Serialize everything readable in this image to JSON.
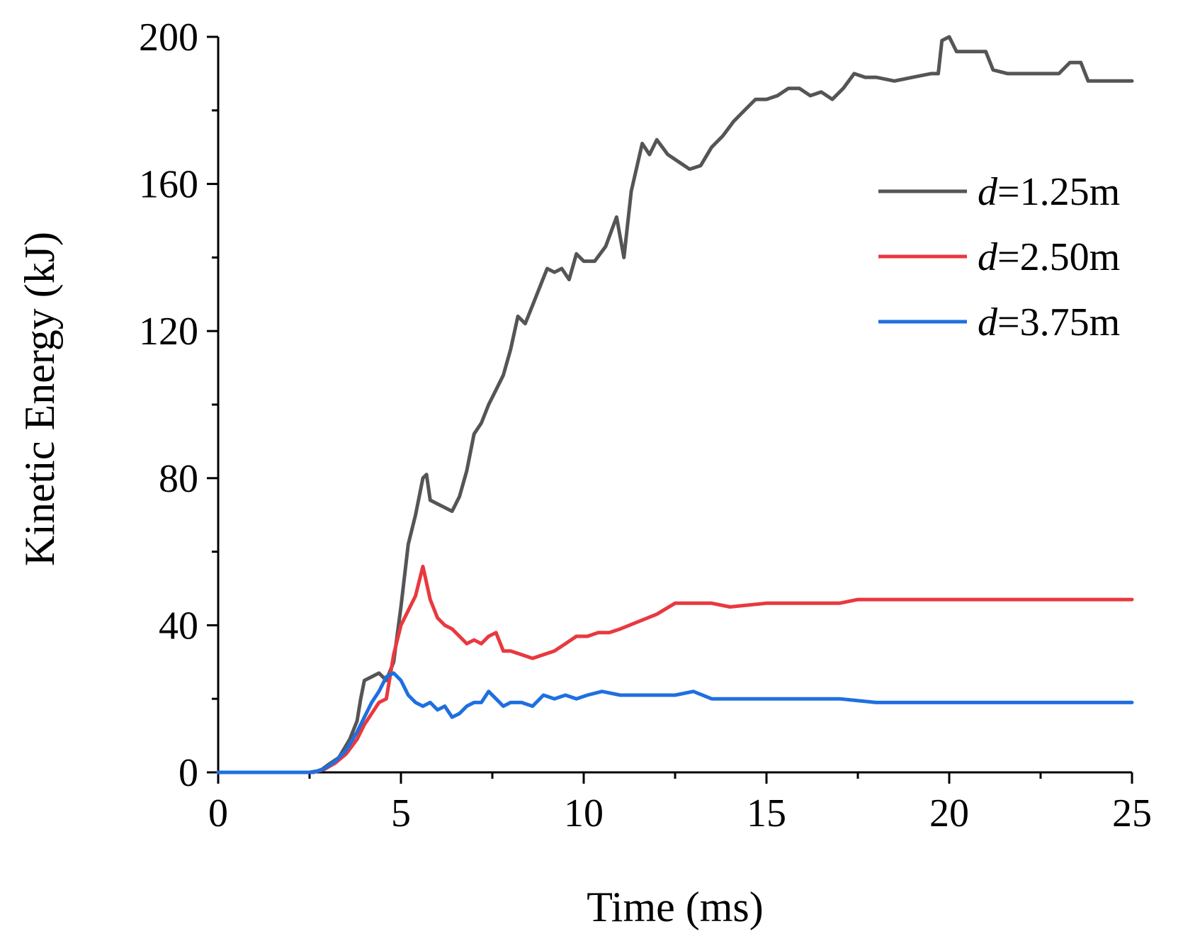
{
  "chart_data": {
    "type": "line",
    "title": "",
    "xlabel": "Time (ms)",
    "ylabel": "Kinetic Energy (kJ)",
    "xlim": [
      0,
      25
    ],
    "ylim": [
      0,
      200
    ],
    "xticks": [
      0,
      5,
      10,
      15,
      20,
      25
    ],
    "yticks": [
      0,
      40,
      80,
      120,
      160,
      200
    ],
    "x_minor_step": 2.5,
    "y_minor_step": 20,
    "grid": false,
    "legend_position": "top-right",
    "series": [
      {
        "name": "d=1.25m",
        "var": "d",
        "label_rest": "=1.25m",
        "color": "#555555",
        "points": [
          [
            0,
            0
          ],
          [
            2.5,
            0
          ],
          [
            2.8,
            0.5
          ],
          [
            3.0,
            2
          ],
          [
            3.3,
            4
          ],
          [
            3.6,
            9
          ],
          [
            3.8,
            14
          ],
          [
            3.9,
            20
          ],
          [
            4.0,
            25
          ],
          [
            4.2,
            26
          ],
          [
            4.4,
            27
          ],
          [
            4.6,
            25
          ],
          [
            4.8,
            30
          ],
          [
            5.0,
            45
          ],
          [
            5.2,
            62
          ],
          [
            5.4,
            70
          ],
          [
            5.6,
            80
          ],
          [
            5.7,
            81
          ],
          [
            5.8,
            74
          ],
          [
            6.0,
            73
          ],
          [
            6.2,
            72
          ],
          [
            6.4,
            71
          ],
          [
            6.6,
            75
          ],
          [
            6.8,
            82
          ],
          [
            7.0,
            92
          ],
          [
            7.2,
            95
          ],
          [
            7.4,
            100
          ],
          [
            7.6,
            104
          ],
          [
            7.8,
            108
          ],
          [
            8.0,
            115
          ],
          [
            8.2,
            124
          ],
          [
            8.4,
            122
          ],
          [
            8.6,
            127
          ],
          [
            8.8,
            132
          ],
          [
            9.0,
            137
          ],
          [
            9.2,
            136
          ],
          [
            9.4,
            137
          ],
          [
            9.6,
            134
          ],
          [
            9.8,
            141
          ],
          [
            10.0,
            139
          ],
          [
            10.3,
            139
          ],
          [
            10.6,
            143
          ],
          [
            10.9,
            151
          ],
          [
            11.1,
            140
          ],
          [
            11.3,
            158
          ],
          [
            11.6,
            171
          ],
          [
            11.8,
            168
          ],
          [
            12.0,
            172
          ],
          [
            12.3,
            168
          ],
          [
            12.6,
            166
          ],
          [
            12.9,
            164
          ],
          [
            13.2,
            165
          ],
          [
            13.5,
            170
          ],
          [
            13.8,
            173
          ],
          [
            14.1,
            177
          ],
          [
            14.4,
            180
          ],
          [
            14.7,
            183
          ],
          [
            15.0,
            183
          ],
          [
            15.3,
            184
          ],
          [
            15.6,
            186
          ],
          [
            15.9,
            186
          ],
          [
            16.2,
            184
          ],
          [
            16.5,
            185
          ],
          [
            16.8,
            183
          ],
          [
            17.1,
            186
          ],
          [
            17.4,
            190
          ],
          [
            17.7,
            189
          ],
          [
            18.0,
            189
          ],
          [
            18.5,
            188
          ],
          [
            19.0,
            189
          ],
          [
            19.5,
            190
          ],
          [
            19.7,
            190
          ],
          [
            19.8,
            199
          ],
          [
            20.0,
            200
          ],
          [
            20.2,
            196
          ],
          [
            20.6,
            196
          ],
          [
            21.0,
            196
          ],
          [
            21.2,
            191
          ],
          [
            21.6,
            190
          ],
          [
            22.0,
            190
          ],
          [
            22.5,
            190
          ],
          [
            23.0,
            190
          ],
          [
            23.3,
            193
          ],
          [
            23.6,
            193
          ],
          [
            23.8,
            188
          ],
          [
            24.3,
            188
          ],
          [
            25,
            188
          ]
        ]
      },
      {
        "name": "d=2.50m",
        "var": "d",
        "label_rest": "=2.50m",
        "color": "#e8393f",
        "points": [
          [
            0,
            0
          ],
          [
            2.6,
            0
          ],
          [
            2.9,
            0.8
          ],
          [
            3.2,
            2.5
          ],
          [
            3.5,
            5
          ],
          [
            3.8,
            9
          ],
          [
            4.0,
            13
          ],
          [
            4.2,
            16
          ],
          [
            4.4,
            19
          ],
          [
            4.6,
            20
          ],
          [
            4.8,
            32
          ],
          [
            5.0,
            40
          ],
          [
            5.2,
            44
          ],
          [
            5.4,
            48
          ],
          [
            5.6,
            56
          ],
          [
            5.8,
            47
          ],
          [
            6.0,
            42
          ],
          [
            6.2,
            40
          ],
          [
            6.4,
            39
          ],
          [
            6.6,
            37
          ],
          [
            6.8,
            35
          ],
          [
            7.0,
            36
          ],
          [
            7.2,
            35
          ],
          [
            7.4,
            37
          ],
          [
            7.6,
            38
          ],
          [
            7.8,
            33
          ],
          [
            8.0,
            33
          ],
          [
            8.3,
            32
          ],
          [
            8.6,
            31
          ],
          [
            8.9,
            32
          ],
          [
            9.2,
            33
          ],
          [
            9.5,
            35
          ],
          [
            9.8,
            37
          ],
          [
            10.1,
            37
          ],
          [
            10.4,
            38
          ],
          [
            10.7,
            38
          ],
          [
            11.0,
            39
          ],
          [
            11.5,
            41
          ],
          [
            12.0,
            43
          ],
          [
            12.5,
            46
          ],
          [
            13.0,
            46
          ],
          [
            13.5,
            46
          ],
          [
            14.0,
            45
          ],
          [
            15.0,
            46
          ],
          [
            16.0,
            46
          ],
          [
            17.0,
            46
          ],
          [
            17.5,
            47
          ],
          [
            18.5,
            47
          ],
          [
            19.0,
            47
          ],
          [
            20.0,
            47
          ],
          [
            22.0,
            47
          ],
          [
            24.0,
            47
          ],
          [
            25,
            47
          ]
        ]
      },
      {
        "name": "d=3.75m",
        "var": "d",
        "label_rest": "=3.75m",
        "color": "#1f6fe0",
        "points": [
          [
            0,
            0
          ],
          [
            2.6,
            0
          ],
          [
            2.9,
            1
          ],
          [
            3.2,
            3
          ],
          [
            3.5,
            6
          ],
          [
            3.8,
            11
          ],
          [
            4.0,
            15
          ],
          [
            4.2,
            19
          ],
          [
            4.4,
            22
          ],
          [
            4.6,
            26
          ],
          [
            4.8,
            27
          ],
          [
            5.0,
            25
          ],
          [
            5.2,
            21
          ],
          [
            5.4,
            19
          ],
          [
            5.6,
            18
          ],
          [
            5.8,
            19
          ],
          [
            6.0,
            17
          ],
          [
            6.2,
            18
          ],
          [
            6.4,
            15
          ],
          [
            6.6,
            16
          ],
          [
            6.8,
            18
          ],
          [
            7.0,
            19
          ],
          [
            7.2,
            19
          ],
          [
            7.4,
            22
          ],
          [
            7.6,
            20
          ],
          [
            7.8,
            18
          ],
          [
            8.0,
            19
          ],
          [
            8.3,
            19
          ],
          [
            8.6,
            18
          ],
          [
            8.9,
            21
          ],
          [
            9.2,
            20
          ],
          [
            9.5,
            21
          ],
          [
            9.8,
            20
          ],
          [
            10.1,
            21
          ],
          [
            10.5,
            22
          ],
          [
            11.0,
            21
          ],
          [
            11.5,
            21
          ],
          [
            12.0,
            21
          ],
          [
            12.5,
            21
          ],
          [
            13.0,
            22
          ],
          [
            13.5,
            20
          ],
          [
            14.0,
            20
          ],
          [
            15.0,
            20
          ],
          [
            16.0,
            20
          ],
          [
            17.0,
            20
          ],
          [
            18.0,
            19
          ],
          [
            20.0,
            19
          ],
          [
            22.0,
            19
          ],
          [
            24.0,
            19
          ],
          [
            25,
            19
          ]
        ]
      }
    ]
  }
}
